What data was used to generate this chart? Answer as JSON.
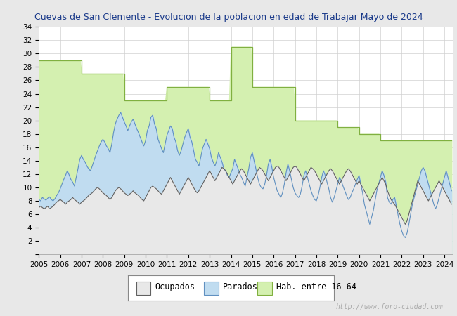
{
  "title": "Cuevas de San Clemente - Evolucion de la poblacion en edad de Trabajar Mayo de 2024",
  "title_color": "#1a3a8a",
  "ylabel": "",
  "xlabel": "",
  "ylim": [
    0,
    34
  ],
  "yticks": [
    0,
    2,
    4,
    6,
    8,
    10,
    12,
    14,
    16,
    18,
    20,
    22,
    24,
    26,
    28,
    30,
    32,
    34
  ],
  "years": [
    2005,
    2006,
    2007,
    2008,
    2009,
    2010,
    2011,
    2012,
    2013,
    2014,
    2015,
    2016,
    2017,
    2018,
    2019,
    2020,
    2021,
    2022,
    2023,
    2024
  ],
  "hab_values": [
    29,
    29,
    27,
    27,
    23,
    23,
    25,
    25,
    23,
    31,
    25,
    25,
    20,
    20,
    19,
    18,
    17,
    17,
    17,
    17
  ],
  "parados_data": [
    8.2,
    8.0,
    8.5,
    8.3,
    8.1,
    8.4,
    8.6,
    8.2,
    8.0,
    8.3,
    8.8,
    9.2,
    9.8,
    10.5,
    11.2,
    11.8,
    12.5,
    11.9,
    11.2,
    10.8,
    10.2,
    11.5,
    12.8,
    14.2,
    14.8,
    14.2,
    13.8,
    13.2,
    12.8,
    12.5,
    13.2,
    14.0,
    14.8,
    15.5,
    16.2,
    16.8,
    17.2,
    16.8,
    16.2,
    15.8,
    15.2,
    16.5,
    18.2,
    19.5,
    20.2,
    20.8,
    21.2,
    20.5,
    19.8,
    19.2,
    18.5,
    19.2,
    19.8,
    20.2,
    19.5,
    18.8,
    18.2,
    17.5,
    16.8,
    16.2,
    17.0,
    18.5,
    19.2,
    20.5,
    20.8,
    19.5,
    18.8,
    17.2,
    16.5,
    15.8,
    15.2,
    16.5,
    17.8,
    18.5,
    19.2,
    18.8,
    17.5,
    16.8,
    15.5,
    14.8,
    15.5,
    16.5,
    17.5,
    18.2,
    18.8,
    17.5,
    16.8,
    15.5,
    14.2,
    13.8,
    13.2,
    14.5,
    15.8,
    16.5,
    17.2,
    16.5,
    15.8,
    14.5,
    13.8,
    13.2,
    14.0,
    15.2,
    14.5,
    13.8,
    12.8,
    12.5,
    11.8,
    11.5,
    12.2,
    12.8,
    14.2,
    13.5,
    12.8,
    12.0,
    11.5,
    10.8,
    10.2,
    11.5,
    12.8,
    14.5,
    15.2,
    14.0,
    12.8,
    11.5,
    10.5,
    10.0,
    9.8,
    10.5,
    11.8,
    13.5,
    14.2,
    13.0,
    11.5,
    10.5,
    9.5,
    9.0,
    8.5,
    9.2,
    10.5,
    12.2,
    13.5,
    12.5,
    11.2,
    10.0,
    9.2,
    8.8,
    8.5,
    9.0,
    10.2,
    11.8,
    12.5,
    11.5,
    10.5,
    9.5,
    8.8,
    8.2,
    8.0,
    8.8,
    10.0,
    11.5,
    12.5,
    11.8,
    10.8,
    9.8,
    8.5,
    7.8,
    8.5,
    9.5,
    10.5,
    11.5,
    11.0,
    10.2,
    9.5,
    8.8,
    8.2,
    8.5,
    9.2,
    9.8,
    10.5,
    11.2,
    11.8,
    10.5,
    9.2,
    7.5,
    6.5,
    5.5,
    4.5,
    5.5,
    6.5,
    8.0,
    9.5,
    10.5,
    11.5,
    12.5,
    11.8,
    10.8,
    8.5,
    7.8,
    7.5,
    8.2,
    8.5,
    7.2,
    5.8,
    4.5,
    3.5,
    2.8,
    2.5,
    3.2,
    4.5,
    6.0,
    7.5,
    8.5,
    9.5,
    10.5,
    11.5,
    12.5,
    13.0,
    12.5,
    11.5,
    10.5,
    9.5,
    8.5,
    7.5,
    6.8,
    7.5,
    8.5,
    9.5,
    10.5,
    11.5,
    12.5,
    11.5,
    10.5,
    9.5,
    8.5,
    7.5
  ],
  "ocupados_data": [
    7.0,
    7.2,
    7.0,
    6.8,
    7.0,
    7.2,
    6.8,
    7.0,
    7.2,
    7.5,
    7.8,
    8.0,
    8.2,
    8.0,
    7.8,
    7.5,
    7.8,
    8.0,
    8.2,
    8.5,
    8.2,
    8.0,
    7.8,
    7.5,
    7.8,
    8.0,
    8.2,
    8.5,
    8.8,
    9.0,
    9.2,
    9.5,
    9.8,
    10.0,
    9.8,
    9.5,
    9.2,
    9.0,
    8.8,
    8.5,
    8.2,
    8.5,
    9.0,
    9.5,
    9.8,
    10.0,
    9.8,
    9.5,
    9.2,
    9.0,
    8.8,
    9.0,
    9.2,
    9.5,
    9.2,
    9.0,
    8.8,
    8.5,
    8.2,
    8.0,
    8.5,
    9.0,
    9.5,
    10.0,
    10.2,
    10.0,
    9.8,
    9.5,
    9.2,
    9.0,
    9.5,
    10.0,
    10.5,
    11.0,
    11.5,
    11.0,
    10.5,
    10.0,
    9.5,
    9.0,
    9.5,
    10.0,
    10.5,
    11.0,
    11.5,
    11.0,
    10.5,
    10.0,
    9.5,
    9.2,
    9.5,
    10.0,
    10.5,
    11.0,
    11.5,
    12.0,
    12.5,
    12.0,
    11.5,
    11.0,
    11.5,
    12.0,
    12.5,
    13.0,
    12.8,
    12.5,
    12.0,
    11.5,
    11.0,
    10.5,
    11.0,
    11.5,
    12.0,
    12.5,
    12.8,
    12.5,
    12.0,
    11.5,
    11.0,
    10.5,
    11.0,
    11.5,
    12.0,
    12.5,
    13.0,
    12.8,
    12.5,
    12.0,
    11.5,
    11.0,
    11.5,
    12.0,
    12.5,
    13.0,
    13.2,
    13.0,
    12.5,
    12.0,
    11.5,
    11.0,
    11.5,
    12.0,
    12.5,
    13.0,
    13.2,
    13.0,
    12.5,
    12.0,
    11.5,
    11.0,
    11.5,
    12.0,
    12.5,
    13.0,
    12.8,
    12.5,
    12.0,
    11.5,
    11.0,
    10.5,
    11.0,
    11.5,
    12.0,
    12.5,
    12.8,
    12.5,
    12.0,
    11.5,
    11.0,
    10.5,
    11.0,
    11.5,
    12.0,
    12.5,
    12.8,
    12.5,
    12.0,
    11.5,
    11.0,
    10.5,
    11.0,
    10.5,
    10.0,
    9.5,
    9.0,
    8.5,
    8.0,
    8.5,
    9.0,
    9.5,
    10.0,
    10.5,
    11.0,
    11.5,
    11.0,
    10.5,
    9.5,
    8.8,
    8.2,
    7.8,
    7.5,
    7.0,
    6.5,
    6.0,
    5.5,
    5.0,
    4.5,
    5.0,
    6.0,
    7.0,
    8.0,
    9.0,
    10.0,
    11.0,
    10.5,
    10.0,
    9.5,
    9.0,
    8.5,
    8.0,
    8.5,
    9.0,
    9.5,
    10.0,
    10.5,
    11.0,
    10.5,
    10.0,
    9.5,
    9.0,
    8.5,
    8.0,
    7.5,
    7.0,
    7.5
  ],
  "hab_color_fill": "#d4f0b0",
  "hab_color_line": "#80b040",
  "parados_color_fill": "#c0dcf0",
  "parados_color_line": "#6090c0",
  "ocupados_color_fill": "#e8e8e8",
  "ocupados_color_line": "#606060",
  "grid_color": "#d0d0d0",
  "plot_bg": "#ffffff",
  "outer_bg": "#e8e8e8",
  "watermark_color": "#aaaaaa",
  "watermark": "http://www.foro-ciudad.com",
  "legend_labels": [
    "Ocupados",
    "Parados",
    "Hab. entre 16-64"
  ],
  "title_fontsize": 9.0,
  "axis_fontsize": 7.5,
  "legend_fontsize": 8.5
}
